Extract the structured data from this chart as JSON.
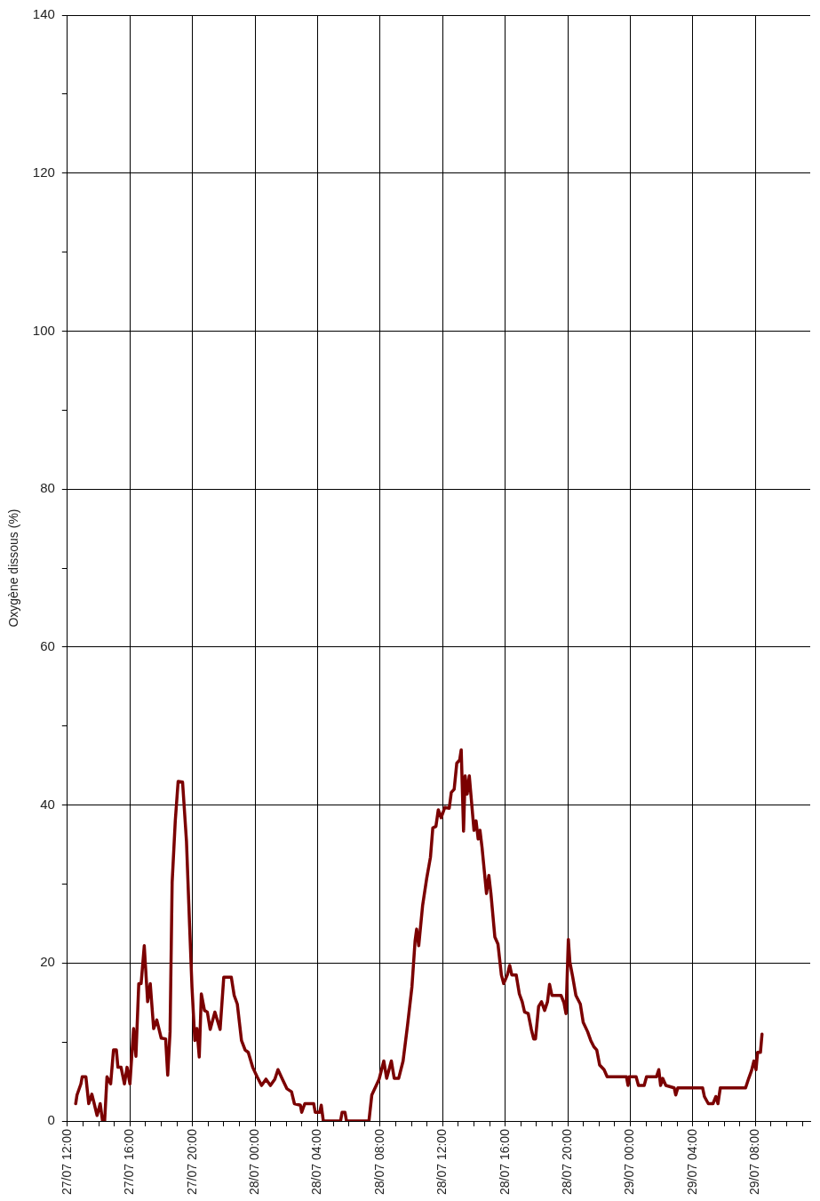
{
  "chart_data": {
    "type": "line",
    "ylabel": "Oxygène dissous (%)",
    "xlim": [
      "--07-27T12:00",
      "--07-29T11:30"
    ],
    "xticks": [
      {
        "value": "--07-27T12:00",
        "label": "27/07 12:00"
      },
      {
        "value": "--07-27T13:00",
        "label": null
      },
      {
        "value": "--07-27T14:00",
        "label": null
      },
      {
        "value": "--07-27T15:00",
        "label": null
      },
      {
        "value": "--07-27T16:00",
        "label": "27/07 16:00"
      },
      {
        "value": "--07-27T17:00",
        "label": null
      },
      {
        "value": "--07-27T18:00",
        "label": null
      },
      {
        "value": "--07-27T19:00",
        "label": null
      },
      {
        "value": "--07-27T20:00",
        "label": "27/07 20:00"
      },
      {
        "value": "--07-27T21:00",
        "label": null
      },
      {
        "value": "--07-27T22:00",
        "label": null
      },
      {
        "value": "--07-27T23:00",
        "label": null
      },
      {
        "value": "--07-28T00:00",
        "label": "28/07 00:00"
      },
      {
        "value": "--07-28T01:00",
        "label": null
      },
      {
        "value": "--07-28T02:00",
        "label": null
      },
      {
        "value": "--07-28T03:00",
        "label": null
      },
      {
        "value": "--07-28T04:00",
        "label": "28/07 04:00"
      },
      {
        "value": "--07-28T05:00",
        "label": null
      },
      {
        "value": "--07-28T06:00",
        "label": null
      },
      {
        "value": "--07-28T07:00",
        "label": null
      },
      {
        "value": "--07-28T08:00",
        "label": "28/07 08:00"
      },
      {
        "value": "--07-28T09:00",
        "label": null
      },
      {
        "value": "--07-28T10:00",
        "label": null
      },
      {
        "value": "--07-28T11:00",
        "label": null
      },
      {
        "value": "--07-28T12:00",
        "label": "28/07 12:00"
      },
      {
        "value": "--07-28T13:00",
        "label": null
      },
      {
        "value": "--07-28T14:00",
        "label": null
      },
      {
        "value": "--07-28T15:00",
        "label": null
      },
      {
        "value": "--07-28T16:00",
        "label": "28/07 16:00"
      },
      {
        "value": "--07-28T17:00",
        "label": null
      },
      {
        "value": "--07-28T18:00",
        "label": null
      },
      {
        "value": "--07-28T19:00",
        "label": null
      },
      {
        "value": "--07-28T20:00",
        "label": "28/07 20:00"
      },
      {
        "value": "--07-28T21:00",
        "label": null
      },
      {
        "value": "--07-28T22:00",
        "label": null
      },
      {
        "value": "--07-28T23:00",
        "label": null
      },
      {
        "value": "--07-29T00:00",
        "label": "29/07 00:00"
      },
      {
        "value": "--07-29T01:00",
        "label": null
      },
      {
        "value": "--07-29T02:00",
        "label": null
      },
      {
        "value": "--07-29T03:00",
        "label": null
      },
      {
        "value": "--07-29T04:00",
        "label": "29/07 04:00"
      },
      {
        "value": "--07-29T05:00",
        "label": null
      },
      {
        "value": "--07-29T06:00",
        "label": null
      },
      {
        "value": "--07-29T07:00",
        "label": null
      },
      {
        "value": "--07-29T08:00",
        "label": "29/07 08:00"
      },
      {
        "value": "--07-29T09:00",
        "label": null
      },
      {
        "value": "--07-29T10:00",
        "label": null
      },
      {
        "value": "--07-29T11:00",
        "label": null
      }
    ],
    "ylim": [
      0,
      140
    ],
    "yticks": [
      0,
      {
        "value": 10,
        "label": null
      },
      20,
      {
        "value": 30,
        "label": null
      },
      40,
      {
        "value": 50,
        "label": null
      },
      60,
      {
        "value": 70,
        "label": null
      },
      80,
      {
        "value": 90,
        "label": null
      },
      100,
      {
        "value": 110,
        "label": null
      },
      120,
      {
        "value": 130,
        "label": null
      },
      140
    ],
    "grid": true,
    "marker": "none",
    "line_style": "solid",
    "series": [
      {
        "color": "#7b0000",
        "x": [
          "--07-27T12:32",
          "--07-27T12:37",
          "--07-27T12:52",
          "--07-27T12:57",
          "--07-27T13:11",
          "--07-27T13:22",
          "--07-27T13:34",
          "--07-27T13:43",
          "--07-27T13:54",
          "--07-27T14:06",
          "--07-27T14:15",
          "--07-27T14:23",
          "--07-27T14:32",
          "--07-27T14:46",
          "--07-27T14:57",
          "--07-27T15:08",
          "--07-27T15:14",
          "--07-27T15:26",
          "--07-27T15:39",
          "--07-27T15:49",
          "--07-27T16:00",
          "--07-27T16:14",
          "--07-27T16:23",
          "--07-27T16:34",
          "--07-27T16:43",
          "--07-27T16:55",
          "--07-27T17:08",
          "--07-27T17:18",
          "--07-27T17:31",
          "--07-27T17:43",
          "--07-27T18:00",
          "--07-27T18:17",
          "--07-27T18:25",
          "--07-27T18:34",
          "--07-27T18:42",
          "--07-27T18:54",
          "--07-27T19:05",
          "--07-27T19:22",
          "--07-27T19:37",
          "--07-27T19:49",
          "--07-27T19:58",
          "--07-27T20:09",
          "--07-27T20:17",
          "--07-27T20:26",
          "--07-27T20:34",
          "--07-27T20:46",
          "--07-27T20:57",
          "--07-27T21:08",
          "--07-27T21:26",
          "--07-27T21:46",
          "--07-27T22:00",
          "--07-27T22:29",
          "--07-27T22:40",
          "--07-27T22:52",
          "--07-27T23:08",
          "--07-27T23:22",
          "--07-27T23:34",
          "--07-27T23:51",
          "--07-28T00:08",
          "--07-28T00:25",
          "--07-28T00:42",
          "--07-28T00:59",
          "--07-28T01:16",
          "--07-28T01:28",
          "--07-28T01:45",
          "--07-28T02:02",
          "--07-28T02:20",
          "--07-28T02:31",
          "--07-28T02:54",
          "--07-28T02:59",
          "--07-28T03:11",
          "--07-28T03:45",
          "--07-28T03:51",
          "--07-28T04:08",
          "--07-28T04:14",
          "--07-28T04:22",
          "--07-28T05:28",
          "--07-28T05:34",
          "--07-28T05:45",
          "--07-28T05:51",
          "--07-28T07:17",
          "--07-28T07:28",
          "--07-28T07:45",
          "--07-28T07:56",
          "--07-28T08:14",
          "--07-28T08:25",
          "--07-28T08:43",
          "--07-28T08:54",
          "--07-28T09:11",
          "--07-28T09:28",
          "--07-28T09:45",
          "--07-28T10:02",
          "--07-28T10:14",
          "--07-28T10:20",
          "--07-28T10:28",
          "--07-28T10:43",
          "--07-28T10:59",
          "--07-28T11:13",
          "--07-28T11:22",
          "--07-28T11:34",
          "--07-28T11:43",
          "--07-28T11:54",
          "--07-28T12:08",
          "--07-28T12:25",
          "--07-28T12:33",
          "--07-28T12:44",
          "--07-28T12:54",
          "--07-28T13:05",
          "--07-28T13:11",
          "--07-28T13:20",
          "--07-28T13:26",
          "--07-28T13:34",
          "--07-28T13:42",
          "--07-28T14:00",
          "--07-28T14:08",
          "--07-28T14:16",
          "--07-28T14:23",
          "--07-28T14:31",
          "--07-28T14:48",
          "--07-28T14:57",
          "--07-28T15:05",
          "--07-28T15:20",
          "--07-28T15:32",
          "--07-28T15:45",
          "--07-28T15:54",
          "--07-28T16:08",
          "--07-28T16:17",
          "--07-28T16:25",
          "--07-28T16:42",
          "--07-28T16:54",
          "--07-28T17:05",
          "--07-28T17:14",
          "--07-28T17:28",
          "--07-28T17:40",
          "--07-28T17:49",
          "--07-28T17:56",
          "--07-28T18:08",
          "--07-28T18:19",
          "--07-28T18:31",
          "--07-28T18:42",
          "--07-28T18:50",
          "--07-28T18:59",
          "--07-28T19:34",
          "--07-28T19:45",
          "--07-28T19:53",
          "--07-28T20:02",
          "--07-28T20:08",
          "--07-28T20:19",
          "--07-28T20:31",
          "--07-28T20:48",
          "--07-28T20:59",
          "--07-28T21:16",
          "--07-28T21:28",
          "--07-28T21:40",
          "--07-28T21:51",
          "--07-28T22:02",
          "--07-28T22:19",
          "--07-28T22:31",
          "--07-28T23:45",
          "--07-28T23:51",
          "--07-28T23:56",
          "--07-29T00:22",
          "--07-29T00:31",
          "--07-29T00:53",
          "--07-29T01:02",
          "--07-29T01:40",
          "--07-29T01:49",
          "--07-29T01:56",
          "--07-29T02:04",
          "--07-29T02:16",
          "--07-29T02:48",
          "--07-29T02:54",
          "--07-29T03:02",
          "--07-29T04:37",
          "--07-29T04:44",
          "--07-29T04:59",
          "--07-29T05:17",
          "--07-29T05:28",
          "--07-29T05:36",
          "--07-29T05:45",
          "--07-29T07:22",
          "--07-29T07:34",
          "--07-29T07:45",
          "--07-29T07:54",
          "--07-29T08:02",
          "--07-29T08:08",
          "--07-29T08:19",
          "--07-29T08:25"
        ],
        "values": [
          2.2,
          3.3,
          4.7,
          5.6,
          5.6,
          2.2,
          3.4,
          2.2,
          0.7,
          2.2,
          0,
          0,
          5.6,
          4.7,
          9.0,
          9.0,
          6.8,
          6.8,
          4.7,
          6.8,
          4.7,
          11.7,
          8.2,
          17.4,
          17.4,
          22.2,
          15.1,
          17.4,
          11.7,
          12.8,
          10.5,
          10.4,
          5.8,
          11.3,
          30.2,
          38,
          43,
          42.9,
          35.4,
          24.7,
          17,
          10.2,
          11.7,
          8.1,
          16.1,
          14,
          13.8,
          11.6,
          13.8,
          11.6,
          18.2,
          18.2,
          15.9,
          14.8,
          10.2,
          9.0,
          8.7,
          6.8,
          5.6,
          4.5,
          5.3,
          4.5,
          5.3,
          6.5,
          5.3,
          4.1,
          3.7,
          2.2,
          2.0,
          1.1,
          2.2,
          2.2,
          1.1,
          1.1,
          2.0,
          0,
          0,
          1.1,
          1.1,
          0,
          0,
          3.3,
          4.5,
          5.3,
          7.6,
          5.4,
          7.6,
          5.4,
          5.4,
          7.6,
          12.1,
          17,
          22.8,
          24.3,
          22.2,
          27.3,
          30.8,
          33.4,
          37.1,
          37.3,
          39.4,
          38.4,
          39.7,
          39.6,
          41.6,
          42,
          45.3,
          45.7,
          47,
          36.7,
          43.7,
          41.4,
          43.7,
          36.8,
          38,
          35.7,
          36.8,
          34.6,
          28.8,
          31.1,
          28.8,
          23.3,
          22.4,
          18.5,
          17.4,
          18.5,
          19.7,
          18.5,
          18.5,
          16.1,
          15.1,
          13.8,
          13.6,
          11.6,
          10.4,
          10.4,
          14.5,
          15.1,
          14,
          15.1,
          17.3,
          15.9,
          15.9,
          15,
          13.6,
          23,
          20.1,
          18.2,
          15.9,
          14.8,
          12.5,
          11.3,
          10.2,
          9.4,
          9.0,
          7.1,
          6.5,
          5.6,
          5.6,
          4.5,
          5.6,
          5.6,
          4.5,
          4.5,
          5.6,
          5.6,
          6.5,
          4.5,
          5.4,
          4.5,
          4.2,
          3.3,
          4.2,
          4.2,
          3.1,
          2.2,
          2.2,
          3.1,
          2.2,
          4.2,
          4.2,
          5.4,
          6.4,
          7.6,
          6.5,
          8.7,
          8.7,
          11
        ]
      }
    ]
  }
}
